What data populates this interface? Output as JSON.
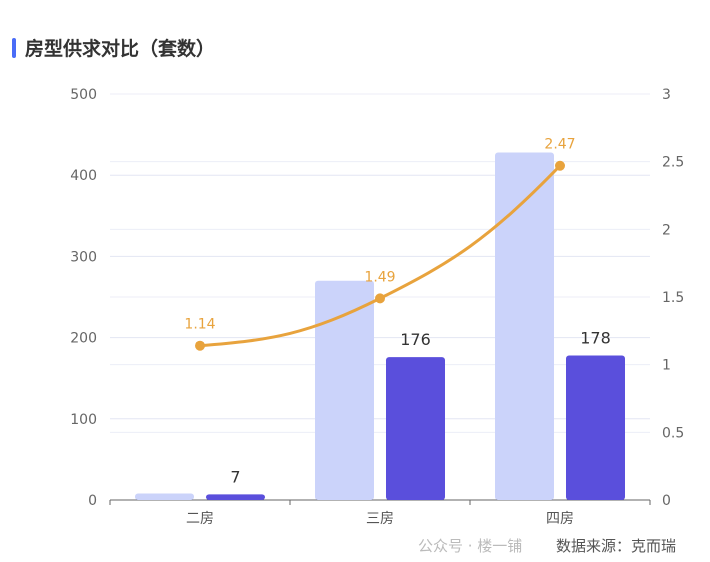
{
  "title": "房型供求对比（套数）",
  "watermark": "公众号 · 楼一铺",
  "source": "数据来源：克而瑞",
  "chart_data": {
    "type": "bar",
    "categories": [
      "二房",
      "三房",
      "四房"
    ],
    "series": [
      {
        "type": "bar",
        "axis": "left",
        "color": "#cbd3fa",
        "values": [
          8,
          270,
          428
        ],
        "show_labels": false
      },
      {
        "type": "bar",
        "axis": "left",
        "color": "#5a4fdc",
        "values": [
          7,
          176,
          178
        ],
        "show_labels": true
      },
      {
        "type": "line",
        "axis": "right",
        "color": "#e8a33d",
        "values": [
          1.14,
          1.49,
          2.47
        ],
        "show_labels": true,
        "smooth": true
      }
    ],
    "left_axis": {
      "min": 0,
      "max": 500,
      "ticks": [
        0,
        100,
        200,
        300,
        400,
        500
      ]
    },
    "right_axis": {
      "min": 0,
      "max": 3,
      "ticks": [
        "0",
        "0.5",
        "1",
        "1.5",
        "2",
        "2.5",
        "3"
      ]
    },
    "grid": true,
    "legend": "none"
  }
}
